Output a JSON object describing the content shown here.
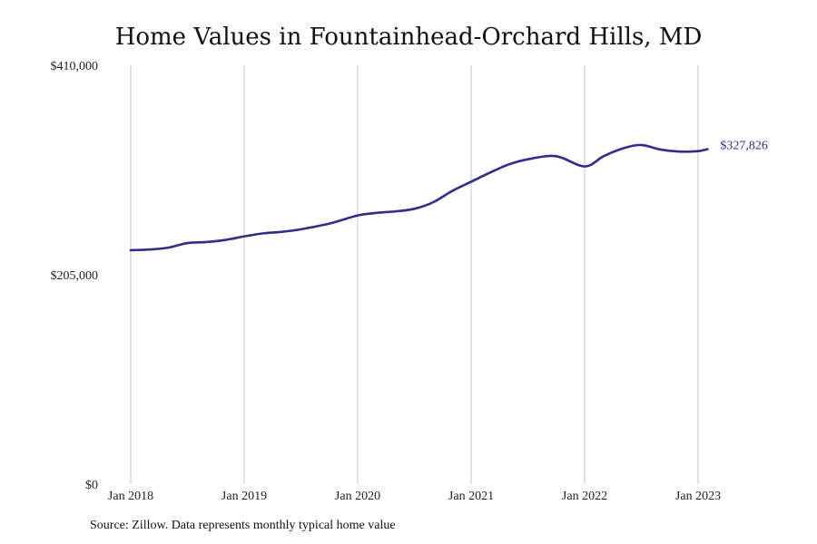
{
  "chart_data": {
    "type": "line",
    "title": "Home Values in Fountainhead-Orchard Hills, MD",
    "xlabel": "",
    "ylabel": "",
    "ylim": [
      0,
      410000
    ],
    "y_ticks": [
      {
        "value": 0,
        "label": "$0"
      },
      {
        "value": 205000,
        "label": "$205,000"
      },
      {
        "value": 410000,
        "label": "$410,000"
      }
    ],
    "x_ticks": [
      {
        "value": 2018.0,
        "label": "Jan 2018"
      },
      {
        "value": 2019.0,
        "label": "Jan 2019"
      },
      {
        "value": 2020.0,
        "label": "Jan 2020"
      },
      {
        "value": 2021.0,
        "label": "Jan 2021"
      },
      {
        "value": 2022.0,
        "label": "Jan 2022"
      },
      {
        "value": 2023.0,
        "label": "Jan 2023"
      }
    ],
    "xlim": [
      2018.0,
      2023.083
    ],
    "grid": "vertical",
    "series": [
      {
        "color": "#2e2e8a",
        "end_label": "$327,826",
        "points": [
          {
            "x": 2018.0,
            "y": 229000
          },
          {
            "x": 2018.167,
            "y": 229700
          },
          {
            "x": 2018.333,
            "y": 231500
          },
          {
            "x": 2018.5,
            "y": 236000
          },
          {
            "x": 2018.667,
            "y": 237000
          },
          {
            "x": 2018.833,
            "y": 239000
          },
          {
            "x": 2019.0,
            "y": 242500
          },
          {
            "x": 2019.167,
            "y": 245500
          },
          {
            "x": 2019.333,
            "y": 247000
          },
          {
            "x": 2019.5,
            "y": 249500
          },
          {
            "x": 2019.75,
            "y": 255000
          },
          {
            "x": 2020.0,
            "y": 263000
          },
          {
            "x": 2020.167,
            "y": 265500
          },
          {
            "x": 2020.333,
            "y": 267000
          },
          {
            "x": 2020.5,
            "y": 269500
          },
          {
            "x": 2020.667,
            "y": 276000
          },
          {
            "x": 2020.833,
            "y": 287000
          },
          {
            "x": 2021.0,
            "y": 296000
          },
          {
            "x": 2021.167,
            "y": 305000
          },
          {
            "x": 2021.333,
            "y": 313000
          },
          {
            "x": 2021.5,
            "y": 318000
          },
          {
            "x": 2021.75,
            "y": 321000
          },
          {
            "x": 2022.0,
            "y": 311000
          },
          {
            "x": 2022.167,
            "y": 321000
          },
          {
            "x": 2022.333,
            "y": 328500
          },
          {
            "x": 2022.5,
            "y": 332000
          },
          {
            "x": 2022.667,
            "y": 327500
          },
          {
            "x": 2022.833,
            "y": 325500
          },
          {
            "x": 2023.0,
            "y": 326000
          },
          {
            "x": 2023.083,
            "y": 327826
          }
        ]
      }
    ]
  },
  "source_note": "Source: Zillow. Data represents monthly typical home value"
}
